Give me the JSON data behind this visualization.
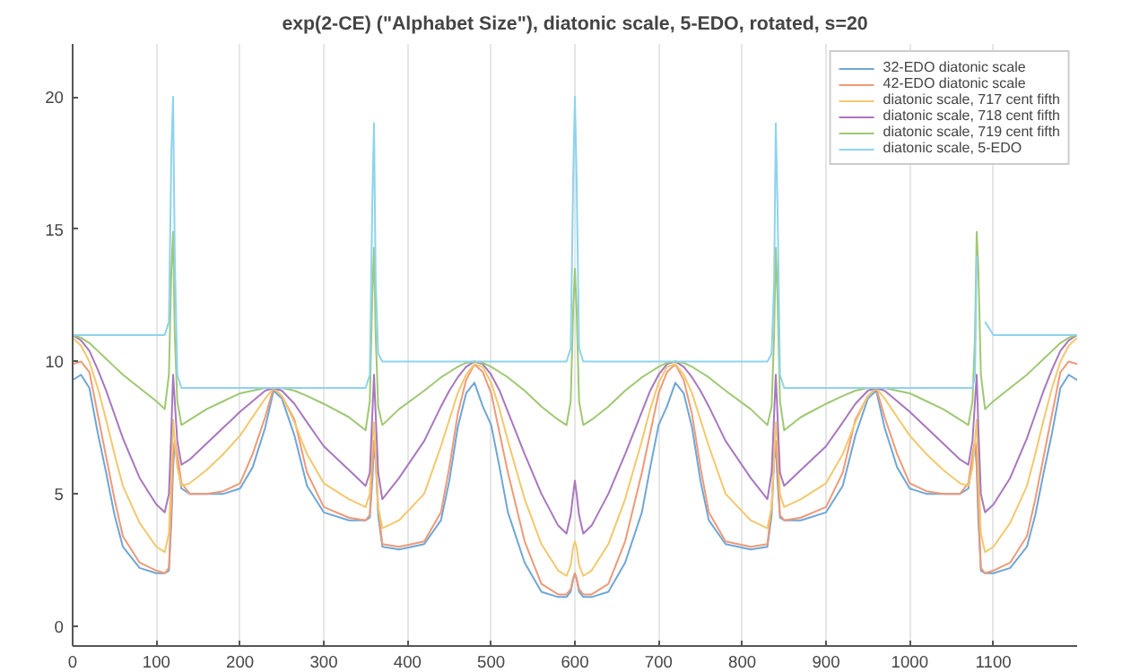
{
  "chart_data": {
    "type": "line",
    "title": "exp(2-CE) (\"Alphabet Size\"), diatonic scale, 5-EDO, rotated, s=20",
    "x": [
      0,
      10,
      20,
      30,
      40,
      50,
      60,
      80,
      100,
      110,
      115,
      118,
      120,
      122,
      125,
      130,
      140,
      160,
      180,
      200,
      215,
      230,
      240,
      250,
      265,
      280,
      300,
      330,
      350,
      355,
      358,
      360,
      362,
      365,
      370,
      390,
      420,
      440,
      450,
      460,
      470,
      480,
      490,
      500,
      510,
      520,
      540,
      560,
      580,
      590,
      595,
      598,
      600,
      602,
      605,
      610,
      620,
      640,
      660,
      680,
      690,
      700,
      710,
      720,
      730,
      740,
      750,
      760,
      780,
      810,
      830,
      835,
      838,
      840,
      842,
      845,
      850,
      870,
      900,
      920,
      935,
      950,
      960,
      970,
      985,
      1000,
      1020,
      1040,
      1060,
      1070,
      1075,
      1078,
      1080,
      1082,
      1085,
      1090,
      1100,
      1120,
      1140,
      1150,
      1160,
      1170,
      1180,
      1190,
      1200
    ],
    "xlim": [
      0,
      1200
    ],
    "ylim": [
      -0.75,
      22
    ],
    "xticks": [
      0,
      100,
      200,
      300,
      400,
      500,
      600,
      700,
      800,
      900,
      1000,
      1100
    ],
    "yticks": [
      0,
      5,
      10,
      15,
      20
    ],
    "grid": "x",
    "legend": "top right",
    "series": [
      {
        "name": "32-EDO diatonic scale",
        "color": "#6fa6d6",
        "values": [
          9.3,
          9.5,
          9.0,
          7.3,
          5.8,
          4.2,
          3.0,
          2.2,
          2.0,
          2.0,
          2.1,
          4.0,
          6.0,
          7.0,
          6.2,
          5.2,
          5.0,
          5.0,
          5.0,
          5.2,
          6.0,
          7.5,
          8.9,
          8.6,
          7.2,
          5.3,
          4.3,
          4.0,
          4.0,
          4.1,
          5.5,
          6.8,
          6.3,
          4.2,
          3.0,
          2.9,
          3.1,
          4.0,
          5.5,
          7.5,
          8.8,
          9.2,
          8.3,
          7.6,
          6.0,
          4.3,
          2.4,
          1.3,
          1.1,
          1.1,
          1.3,
          1.8,
          2.0,
          1.8,
          1.3,
          1.1,
          1.1,
          1.3,
          2.4,
          4.3,
          6.0,
          7.6,
          8.3,
          9.2,
          8.8,
          7.5,
          5.5,
          4.0,
          3.1,
          2.9,
          3.0,
          4.2,
          6.3,
          6.8,
          5.5,
          4.1,
          4.0,
          4.0,
          4.3,
          5.3,
          7.2,
          8.6,
          8.9,
          7.5,
          6.0,
          5.2,
          5.0,
          5.0,
          5.0,
          5.2,
          6.2,
          7.0,
          6.0,
          4.0,
          2.1,
          2.0,
          2.0,
          2.2,
          3.0,
          4.2,
          5.8,
          7.3,
          9.0,
          9.5,
          9.3
        ]
      },
      {
        "name": "42-EDO diatonic scale",
        "color": "#ee9a78",
        "values": [
          9.9,
          10.0,
          9.6,
          8.0,
          6.4,
          4.8,
          3.4,
          2.4,
          2.1,
          2.0,
          2.2,
          4.5,
          6.5,
          7.0,
          6.5,
          5.4,
          5.0,
          5.0,
          5.1,
          5.4,
          6.5,
          7.9,
          9.0,
          8.7,
          7.8,
          5.8,
          4.5,
          4.1,
          4.0,
          4.2,
          6.0,
          7.0,
          6.5,
          4.5,
          3.1,
          3.0,
          3.2,
          4.3,
          6.0,
          8.0,
          9.3,
          9.9,
          9.6,
          8.8,
          7.3,
          5.8,
          3.2,
          1.6,
          1.2,
          1.2,
          1.4,
          1.8,
          2.0,
          1.8,
          1.4,
          1.2,
          1.2,
          1.6,
          3.2,
          5.8,
          7.3,
          8.8,
          9.6,
          9.9,
          9.3,
          8.0,
          6.0,
          4.3,
          3.2,
          3.0,
          3.1,
          4.5,
          6.5,
          7.0,
          6.0,
          4.2,
          4.0,
          4.1,
          4.5,
          5.8,
          7.8,
          8.7,
          9.0,
          7.9,
          6.5,
          5.4,
          5.1,
          5.0,
          5.0,
          5.4,
          6.5,
          7.0,
          6.5,
          4.5,
          2.2,
          2.0,
          2.1,
          2.4,
          3.4,
          4.8,
          6.4,
          8.0,
          9.6,
          10.0,
          9.9
        ]
      },
      {
        "name": "diatonic scale, 717 cent fifth",
        "color": "#f3c86c",
        "values": [
          10.9,
          10.6,
          10.0,
          9.0,
          7.8,
          6.5,
          5.3,
          3.9,
          3.0,
          2.8,
          3.5,
          6.0,
          7.8,
          7.0,
          6.0,
          5.3,
          5.4,
          5.9,
          6.5,
          7.2,
          7.9,
          8.6,
          9.0,
          8.7,
          7.7,
          6.5,
          5.4,
          4.8,
          4.5,
          5.0,
          7.0,
          7.7,
          6.5,
          4.5,
          3.7,
          4.0,
          5.0,
          6.8,
          7.8,
          8.8,
          9.5,
          9.9,
          9.8,
          9.2,
          8.2,
          7.0,
          4.8,
          3.1,
          2.1,
          1.9,
          2.3,
          3.0,
          3.2,
          3.0,
          2.3,
          1.9,
          2.1,
          3.1,
          4.8,
          7.0,
          8.2,
          9.2,
          9.8,
          9.9,
          9.5,
          8.8,
          7.8,
          6.8,
          5.0,
          4.0,
          3.7,
          4.5,
          6.5,
          7.7,
          7.0,
          5.0,
          4.5,
          4.8,
          5.4,
          6.5,
          7.7,
          8.7,
          9.0,
          8.6,
          7.9,
          7.2,
          6.5,
          5.9,
          5.4,
          5.3,
          6.0,
          7.0,
          7.8,
          6.0,
          3.5,
          2.8,
          3.0,
          3.9,
          5.3,
          6.5,
          7.8,
          9.0,
          10.0,
          10.6,
          10.9
        ]
      },
      {
        "name": "diatonic scale, 718 cent fifth",
        "color": "#a877bd",
        "values": [
          11,
          10.8,
          10.4,
          9.7,
          8.9,
          8.0,
          7.1,
          5.6,
          4.6,
          4.3,
          5.0,
          7.5,
          9.5,
          8.5,
          7.0,
          6.1,
          6.3,
          6.9,
          7.5,
          8.1,
          8.5,
          8.9,
          9.0,
          8.9,
          8.4,
          7.7,
          6.8,
          5.9,
          5.3,
          5.8,
          8.0,
          9.5,
          8.0,
          5.8,
          4.8,
          5.6,
          7.0,
          8.3,
          8.9,
          9.4,
          9.8,
          10.0,
          9.9,
          9.5,
          8.9,
          8.1,
          6.5,
          5.0,
          3.8,
          3.5,
          4.2,
          5.0,
          5.5,
          5.0,
          4.2,
          3.5,
          3.8,
          5.0,
          6.5,
          8.1,
          8.9,
          9.5,
          9.9,
          10.0,
          9.8,
          9.4,
          8.9,
          8.3,
          7.0,
          5.6,
          4.8,
          5.8,
          8.0,
          9.5,
          8.0,
          5.8,
          5.3,
          5.9,
          6.8,
          7.7,
          8.4,
          8.9,
          9.0,
          8.9,
          8.5,
          8.1,
          7.5,
          6.9,
          6.3,
          6.1,
          7.0,
          8.5,
          9.5,
          7.5,
          5.0,
          4.3,
          4.6,
          5.6,
          7.1,
          8.0,
          8.9,
          9.7,
          10.4,
          10.8,
          11
        ]
      },
      {
        "name": "diatonic scale, 719 cent fifth",
        "color": "#9fc872",
        "values": [
          11,
          10.9,
          10.7,
          10.4,
          10.1,
          9.8,
          9.5,
          9.0,
          8.5,
          8.2,
          9.5,
          13.5,
          14.9,
          11,
          8.5,
          7.6,
          7.8,
          8.2,
          8.5,
          8.8,
          8.9,
          9.0,
          9.0,
          9.0,
          8.9,
          8.7,
          8.4,
          7.9,
          7.4,
          8.5,
          12.5,
          14.3,
          11,
          8.3,
          7.6,
          8.2,
          8.9,
          9.4,
          9.6,
          9.8,
          9.95,
          10.0,
          9.95,
          9.8,
          9.6,
          9.4,
          8.9,
          8.3,
          7.8,
          7.6,
          8.5,
          12,
          13.5,
          12,
          8.5,
          7.6,
          7.8,
          8.3,
          8.9,
          9.4,
          9.6,
          9.8,
          9.95,
          10.0,
          9.95,
          9.8,
          9.6,
          9.4,
          8.9,
          8.2,
          7.6,
          8.3,
          11,
          14.3,
          12.5,
          8.5,
          7.4,
          7.9,
          8.4,
          8.7,
          8.9,
          9.0,
          9.0,
          9.0,
          8.9,
          8.8,
          8.5,
          8.2,
          7.8,
          7.6,
          8.5,
          11,
          14.9,
          13.5,
          9.5,
          8.2,
          8.5,
          9.0,
          9.5,
          9.8,
          10.1,
          10.4,
          10.7,
          10.9,
          11
        ]
      },
      {
        "name": "diatonic scale, 5-EDO",
        "color": "#8dd3f0",
        "values": [
          11,
          11,
          11,
          11,
          11,
          11,
          11,
          11,
          11,
          11,
          11.5,
          18,
          20,
          14,
          9.5,
          9,
          9,
          9,
          9,
          9,
          9,
          9,
          9,
          9,
          9,
          9,
          9,
          9,
          9,
          9.5,
          16,
          19,
          13,
          10.3,
          10,
          10,
          10,
          10,
          10,
          10,
          10,
          10,
          10,
          10,
          10,
          10,
          10,
          10,
          10,
          10,
          10.5,
          17,
          20,
          17,
          10.5,
          10,
          10,
          10,
          10,
          10,
          10,
          10,
          10,
          10,
          10,
          10,
          10,
          10,
          10,
          10,
          10,
          10.3,
          13,
          19,
          16,
          9.5,
          9,
          9,
          9,
          9,
          9,
          9,
          9,
          9,
          9,
          9,
          9,
          9,
          9,
          9,
          9,
          9.5,
          14,
          null,
          null,
          11.5,
          11,
          11,
          11,
          11,
          11,
          11,
          11,
          11,
          11
        ]
      }
    ]
  }
}
